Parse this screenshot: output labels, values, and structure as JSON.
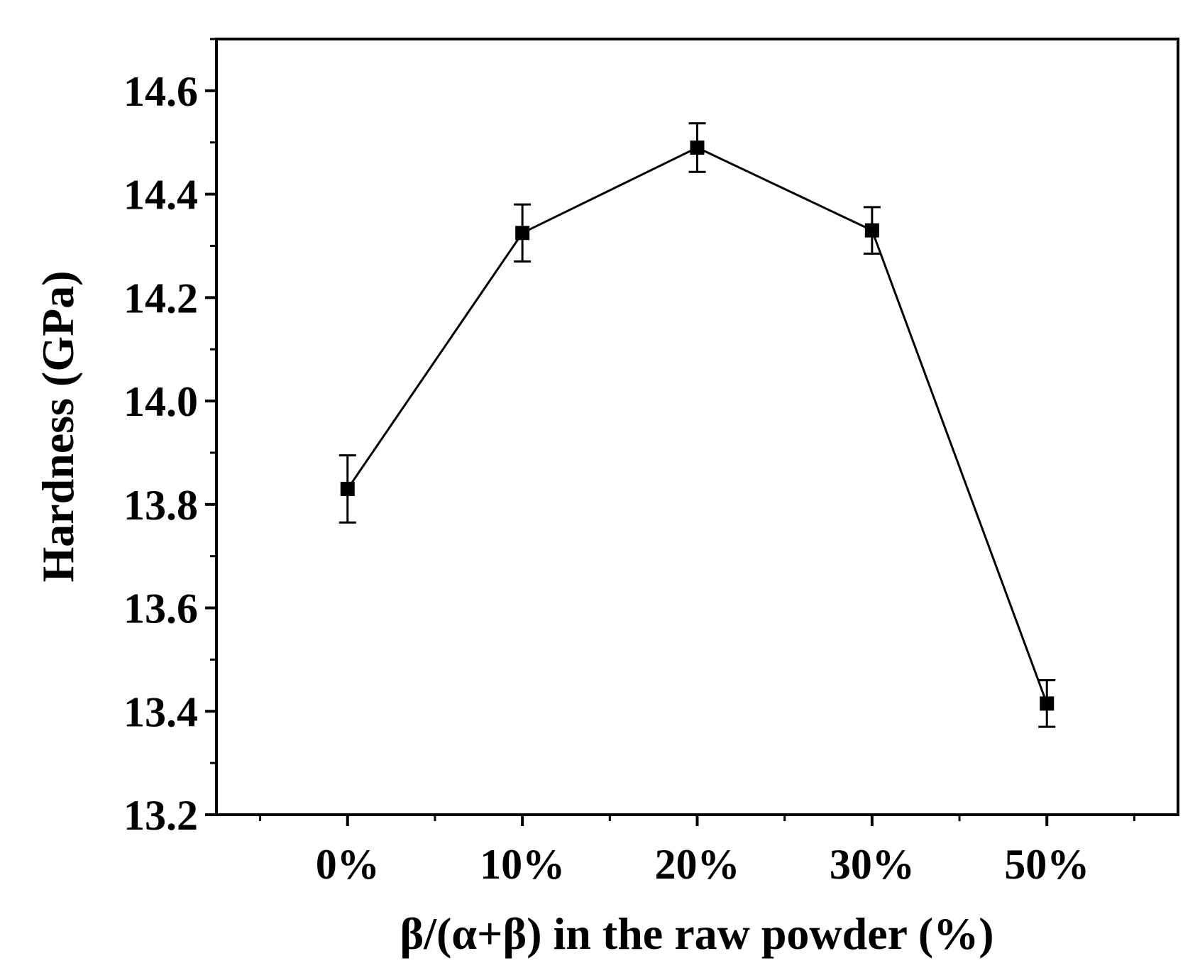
{
  "chart_data": {
    "type": "line",
    "title": "",
    "xlabel": "β/(α+β) in the raw powder (%)",
    "ylabel": "Hardness (GPa)",
    "categories": [
      "0%",
      "10%",
      "20%",
      "30%",
      "50%"
    ],
    "ylim": [
      13.2,
      14.7
    ],
    "y_ticks": [
      "13.2",
      "13.4",
      "13.6",
      "13.8",
      "14.0",
      "14.2",
      "14.4",
      "14.6"
    ],
    "grid": false,
    "legend": "none",
    "series": [
      {
        "values": [
          13.83,
          14.325,
          14.49,
          14.33,
          13.415
        ],
        "errors": [
          0.065,
          0.055,
          0.047,
          0.045,
          0.045
        ],
        "marker": "square",
        "color": "#000000"
      }
    ]
  }
}
